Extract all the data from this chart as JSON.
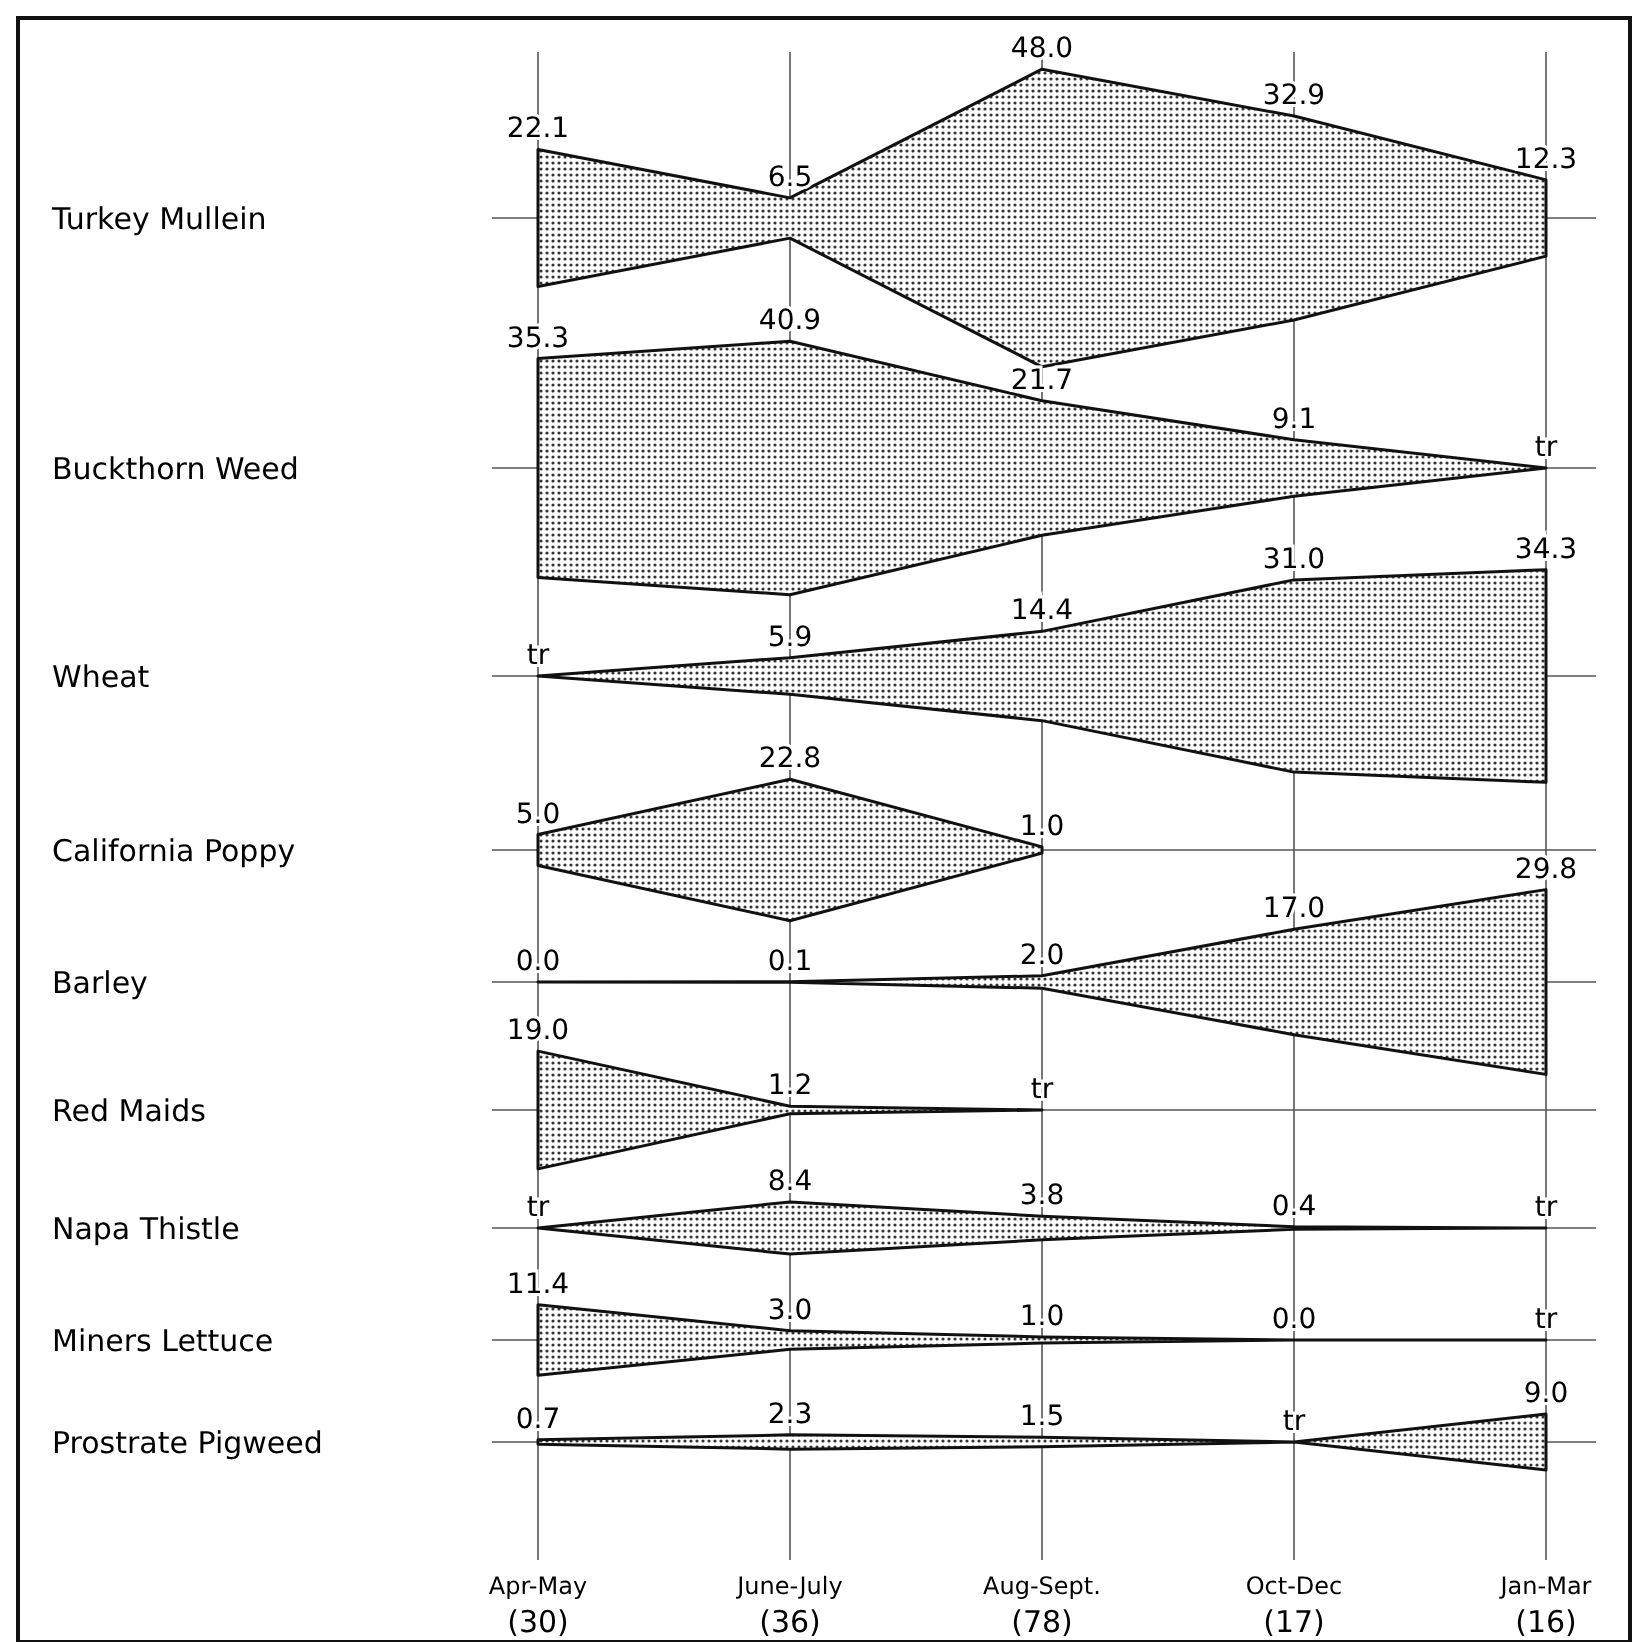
{
  "chart_data": {
    "type": "other",
    "categories": [
      "Apr-May (30)",
      "June-July (36)",
      "Aug-Sept. (78)",
      "Oct-Dec (17)",
      "Jan-Mar (16)"
    ],
    "series": [
      {
        "name": "Turkey Mullein",
        "values": [
          22.1,
          6.5,
          48.0,
          32.9,
          12.3
        ],
        "value_labels": [
          "22.1",
          "6.5",
          "48.0",
          "32.9",
          "12.3"
        ]
      },
      {
        "name": "Buckthorn Weed",
        "values": [
          35.3,
          40.9,
          21.7,
          9.1,
          null
        ],
        "value_labels": [
          "35.3",
          "40.9",
          "21.7",
          "9.1",
          "tr"
        ]
      },
      {
        "name": "Wheat",
        "values": [
          null,
          5.9,
          14.4,
          31.0,
          34.3
        ],
        "value_labels": [
          "tr",
          "5.9",
          "14.4",
          "31.0",
          "34.3"
        ]
      },
      {
        "name": "California Poppy",
        "values": [
          5.0,
          22.8,
          1.0,
          null,
          null
        ],
        "value_labels": [
          "5.0",
          "22.8",
          "1.0",
          null,
          null
        ]
      },
      {
        "name": "Barley",
        "values": [
          0.0,
          0.1,
          2.0,
          17.0,
          29.8
        ],
        "value_labels": [
          "0.0",
          "0.1",
          "2.0",
          "17.0",
          "29.8"
        ]
      },
      {
        "name": "Red Maids",
        "values": [
          19.0,
          1.2,
          null,
          null,
          null
        ],
        "value_labels": [
          "19.0",
          "1.2",
          "tr",
          null,
          null
        ]
      },
      {
        "name": "Napa Thistle",
        "values": [
          null,
          8.4,
          3.8,
          0.4,
          null
        ],
        "value_labels": [
          "tr",
          "8.4",
          "3.8",
          "0.4",
          "tr"
        ]
      },
      {
        "name": "Miners Lettuce",
        "values": [
          11.4,
          3.0,
          1.0,
          0.0,
          null
        ],
        "value_labels": [
          "11.4",
          "3.0",
          "1.0",
          "0.0",
          "tr"
        ]
      },
      {
        "name": "Prostrate Pigweed",
        "values": [
          0.7,
          2.3,
          1.5,
          null,
          9.0
        ],
        "value_labels": [
          "0.7",
          "2.3",
          "1.5",
          "tr",
          "9.0"
        ]
      }
    ]
  }
}
